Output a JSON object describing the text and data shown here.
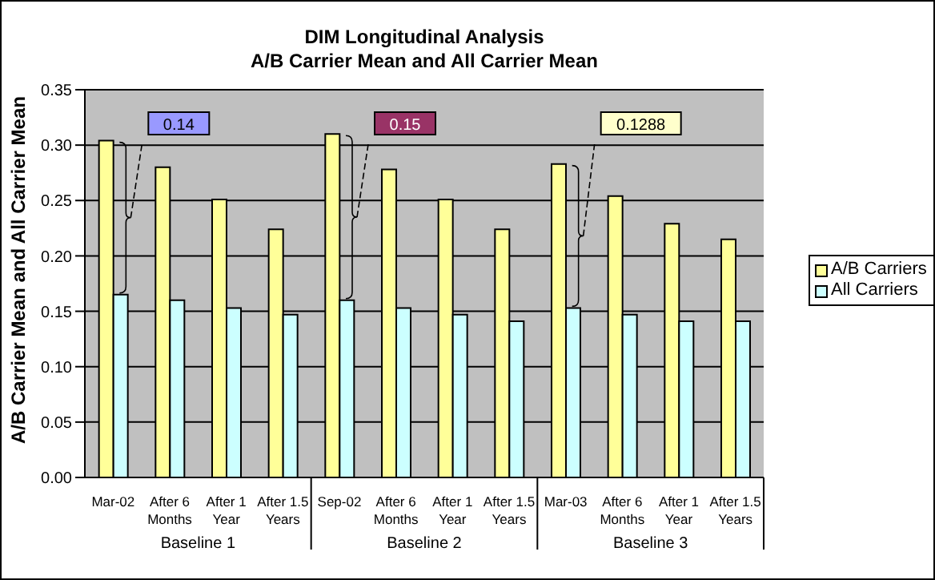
{
  "chart_data": {
    "type": "bar",
    "title": "DIM Longitudinal Analysis",
    "subtitle": "A/B Carrier Mean and All Carrier Mean",
    "ylabel": "A/B Carrier Mean and All Carrier Mean",
    "categories": [
      "Mar-02",
      "After 6 Months",
      "After 1 Year",
      "After 1.5 Years",
      "Sep-02",
      "After 6 Months",
      "After 1 Year",
      "After 1.5 Years",
      "Mar-03",
      "After 6 Months",
      "After 1 Year",
      "After 1.5 Years"
    ],
    "series": [
      {
        "name": "A/B Carriers",
        "color": "#ffff99",
        "values": [
          0.304,
          0.28,
          0.251,
          0.224,
          0.31,
          0.278,
          0.251,
          0.224,
          0.283,
          0.254,
          0.229,
          0.215
        ]
      },
      {
        "name": "All Carriers",
        "color": "#ccffff",
        "values": [
          0.165,
          0.16,
          0.153,
          0.147,
          0.16,
          0.153,
          0.147,
          0.141,
          0.153,
          0.147,
          0.141,
          0.141
        ]
      }
    ],
    "ylim": [
      0,
      0.35
    ],
    "yticks": [
      {
        "value": 0,
        "label": "0.00"
      },
      {
        "value": 0.05,
        "label": "0.05"
      },
      {
        "value": 0.1,
        "label": "0.10"
      },
      {
        "value": 0.15,
        "label": "0.15"
      },
      {
        "value": 0.2,
        "label": "0.20"
      },
      {
        "value": 0.25,
        "label": "0.25"
      },
      {
        "value": 0.3,
        "label": "0.30"
      },
      {
        "value": 0.35,
        "label": "0.35"
      }
    ],
    "grid": "y",
    "legend": "right",
    "annotations": [
      "0.14",
      "0.15",
      "0.1288",
      "Baseline 1",
      "Baseline 2",
      "Baseline 3"
    ]
  }
}
